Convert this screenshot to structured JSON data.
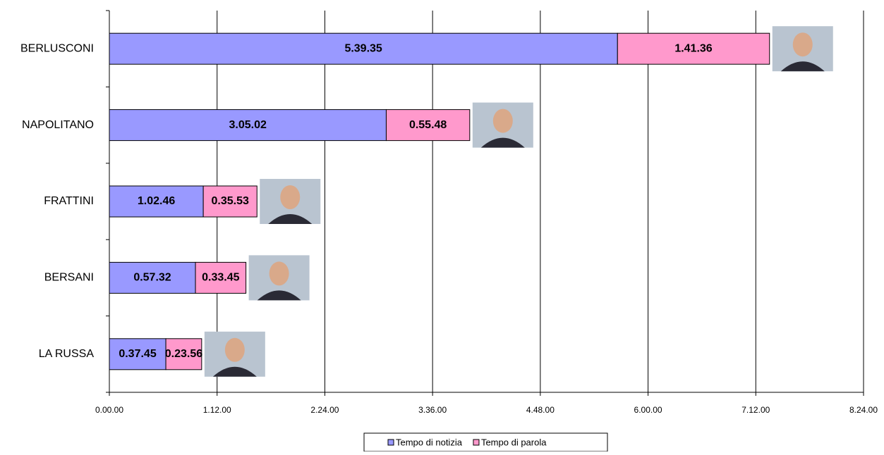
{
  "chart_data": {
    "type": "bar",
    "orientation": "horizontal",
    "stacked": true,
    "categories": [
      "BERLUSCONI",
      "NAPOLITANO",
      "FRATTINI",
      "BERSANI",
      "LA RUSSA"
    ],
    "series": [
      {
        "name": "Tempo di notizia",
        "color": "#9999ff",
        "values": [
          20375,
          11102,
          3766,
          3452,
          2265
        ],
        "value_labels": [
          "5.39.35",
          "3.05.02",
          "1.02.46",
          "0.57.32",
          "0.37.45"
        ]
      },
      {
        "name": "Tempo di parola",
        "color": "#ff99cc",
        "values": [
          6096,
          3348,
          2153,
          2025,
          1436
        ],
        "value_labels": [
          "1.41.36",
          "0.55.48",
          "0.35.53",
          "0.33.45",
          "0.23.56"
        ]
      }
    ],
    "xlim": [
      0,
      30240
    ],
    "xticks": [
      {
        "value": 0,
        "label": "0.00.00"
      },
      {
        "value": 4320,
        "label": "1.12.00"
      },
      {
        "value": 8640,
        "label": "2.24.00"
      },
      {
        "value": 12960,
        "label": "3.36.00"
      },
      {
        "value": 17280,
        "label": "4.48.00"
      },
      {
        "value": 21600,
        "label": "6.00.00"
      },
      {
        "value": 25920,
        "label": "7.12.00"
      },
      {
        "value": 30240,
        "label": "8.24.00"
      }
    ],
    "grid": true,
    "legend": "bottom"
  }
}
